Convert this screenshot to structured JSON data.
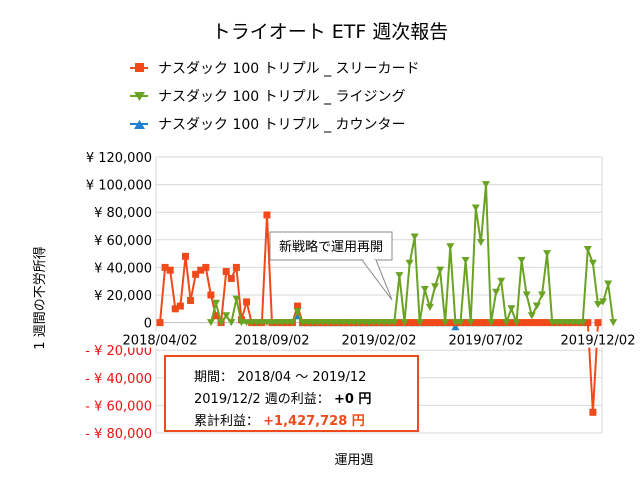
{
  "chart_data": {
    "type": "line",
    "title": "トライオート ETF 週次報告",
    "ylabel": "1 週間の不労所得",
    "xlabel": "運用週",
    "ylim": [
      -80000,
      120000
    ],
    "y_ticks": [
      {
        "value": 120000,
        "label": "¥ 120,000"
      },
      {
        "value": 100000,
        "label": "¥ 100,000"
      },
      {
        "value": 80000,
        "label": "¥ 80,000"
      },
      {
        "value": 60000,
        "label": "¥ 60,000"
      },
      {
        "value": 40000,
        "label": "¥ 40,000"
      },
      {
        "value": 20000,
        "label": "¥ 20,000"
      },
      {
        "value": 0,
        "label": "0"
      },
      {
        "value": -20000,
        "label": "- ¥ 20,000"
      },
      {
        "value": -40000,
        "label": "- ¥ 40,000"
      },
      {
        "value": -60000,
        "label": "- ¥ 60,000"
      },
      {
        "value": -80000,
        "label": "- ¥ 80,000"
      }
    ],
    "x_ticks": [
      {
        "index": 0,
        "label": "2018/04/02"
      },
      {
        "index": 22,
        "label": "2018/09/02"
      },
      {
        "index": 43,
        "label": "2019/02/02"
      },
      {
        "index": 64,
        "label": "2019/07/02"
      },
      {
        "index": 86,
        "label": "2019/12/02"
      }
    ],
    "grid": true,
    "legend_position": "top",
    "series": [
      {
        "name": "ナスダック 100 トリプル _ スリーカード",
        "color": "#f04a1a",
        "marker": "square",
        "values": [
          0,
          40000,
          38000,
          10000,
          12000,
          48000,
          16000,
          35000,
          38000,
          40000,
          20000,
          5000,
          0,
          37000,
          32000,
          40000,
          2000,
          15000,
          0,
          0,
          0,
          78000,
          0,
          0,
          0,
          0,
          0,
          12000,
          0,
          0,
          0,
          0,
          0,
          0,
          0,
          0,
          0,
          0,
          0,
          0,
          0,
          0,
          0,
          0,
          0,
          0,
          0,
          0,
          0,
          0,
          0,
          0,
          0,
          0,
          0,
          0,
          0,
          0,
          0,
          0,
          0,
          0,
          0,
          0,
          0,
          0,
          0,
          0,
          0,
          0,
          0,
          0,
          0,
          0,
          0,
          0,
          0,
          0,
          0,
          0,
          0,
          0,
          0,
          0,
          0,
          -65000,
          0
        ]
      },
      {
        "name": "ナスダック 100 トリプル _ ライジング",
        "color": "#6aa323",
        "marker": "triangle-down",
        "values": [
          null,
          null,
          null,
          null,
          null,
          null,
          null,
          null,
          null,
          null,
          0,
          14000,
          0,
          5000,
          0,
          17000,
          0,
          0,
          0,
          0,
          0,
          0,
          0,
          0,
          0,
          0,
          0,
          8000,
          0,
          0,
          0,
          0,
          0,
          0,
          0,
          0,
          0,
          0,
          0,
          0,
          0,
          0,
          0,
          0,
          0,
          0,
          0,
          34000,
          0,
          43000,
          62000,
          0,
          24000,
          11000,
          26000,
          38000,
          0,
          55000,
          0,
          0,
          45000,
          0,
          83000,
          58000,
          100000,
          0,
          22000,
          30000,
          0,
          10000,
          0,
          45000,
          20000,
          5000,
          12000,
          20000,
          50000,
          0,
          0,
          0,
          0,
          0,
          0,
          0,
          53000,
          43000,
          13000,
          15000,
          28000,
          0
        ]
      },
      {
        "name": "ナスダック 100 トリプル _ カウンター",
        "color": "#1f7fd1",
        "marker": "triangle-up",
        "values": [
          null,
          null,
          null,
          null,
          null,
          null,
          null,
          null,
          null,
          null,
          null,
          null,
          null,
          null,
          null,
          null,
          null,
          null,
          null,
          null,
          null,
          null,
          null,
          null,
          null,
          null,
          null,
          5000,
          0,
          0,
          0,
          0,
          0,
          0,
          0,
          0,
          0,
          0,
          0,
          0,
          0,
          0,
          0,
          0,
          0,
          0,
          0,
          0,
          0,
          0,
          0,
          0,
          0,
          0,
          0,
          0,
          0,
          0,
          -3000,
          0,
          0,
          0,
          0,
          0,
          0,
          0,
          0,
          0,
          0,
          null,
          null,
          null,
          null,
          null,
          null,
          null,
          null,
          null,
          null,
          null,
          null,
          null,
          null,
          null,
          null,
          null,
          null,
          null,
          null,
          null
        ]
      }
    ],
    "annotation": "新戦略で運用再開"
  },
  "summary": {
    "period_label": "期間：",
    "period_value": "2018/04 ～ 2019/12",
    "week_label": "2019/12/2 週の利益：",
    "week_value": "+0 円",
    "total_label": "累計利益：",
    "total_value": "+1,427,728 円",
    "border_color": "#f04a1a"
  }
}
